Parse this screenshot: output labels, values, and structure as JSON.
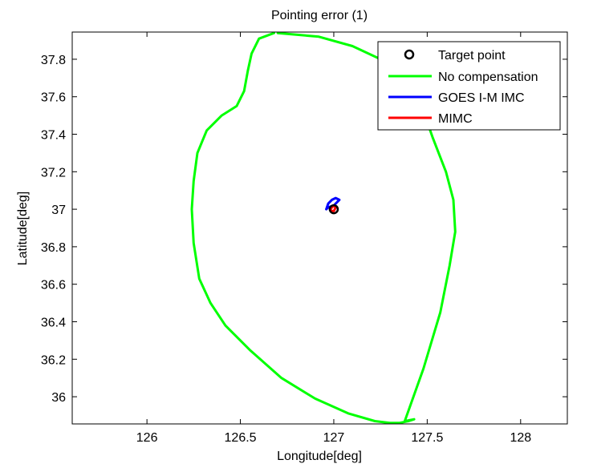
{
  "chart_data": {
    "type": "line",
    "title": "Pointing error (1)",
    "xlabel": "Longitude[deg]",
    "ylabel": "Latitude[deg]",
    "xlim": [
      125.6,
      128.25
    ],
    "ylim": [
      35.855,
      37.945
    ],
    "xticks": [
      126,
      126.5,
      127,
      127.5,
      128
    ],
    "xtick_labels": [
      "126",
      "126.5",
      "127",
      "127.5",
      "128"
    ],
    "yticks": [
      36,
      36.2,
      36.4,
      36.6,
      36.8,
      37,
      37.2,
      37.4,
      37.6,
      37.8
    ],
    "ytick_labels": [
      "36",
      "36.2",
      "36.4",
      "36.6",
      "36.8",
      "37",
      "37.2",
      "37.4",
      "37.6",
      "37.8"
    ],
    "grid": false,
    "legend_position": "top-right",
    "series": [
      {
        "name": "Target point",
        "style": "marker",
        "color": "#000000",
        "x": [
          127.0
        ],
        "y": [
          37.0
        ]
      },
      {
        "name": "No compensation",
        "style": "line",
        "color": "#00ff00",
        "x": [
          126.68,
          126.6,
          126.56,
          126.54,
          126.52,
          126.48,
          126.4,
          126.32,
          126.27,
          126.25,
          126.24,
          126.25,
          126.28,
          126.34,
          126.42,
          126.55,
          126.72,
          126.9,
          127.08,
          127.22,
          127.3,
          127.35,
          127.4,
          127.43,
          127.38,
          127.48,
          127.57,
          127.62,
          127.65,
          127.64,
          127.6,
          127.53,
          127.47,
          127.43,
          127.35,
          127.25,
          127.1,
          126.92,
          126.7
        ],
        "y": [
          37.94,
          37.91,
          37.83,
          37.74,
          37.63,
          37.55,
          37.5,
          37.42,
          37.3,
          37.15,
          37.0,
          36.82,
          36.63,
          36.5,
          36.38,
          36.25,
          36.1,
          35.99,
          35.91,
          35.87,
          35.86,
          35.86,
          35.87,
          35.88,
          35.87,
          36.15,
          36.45,
          36.7,
          36.88,
          37.05,
          37.2,
          37.38,
          37.55,
          37.62,
          37.72,
          37.8,
          37.87,
          37.92,
          37.94
        ]
      },
      {
        "name": "GOES I-M IMC",
        "style": "line",
        "color": "#0000ff",
        "x": [
          126.96,
          126.97,
          126.99,
          127.01,
          127.03,
          127.0,
          126.97,
          126.96
        ],
        "y": [
          37.0,
          37.03,
          37.05,
          37.06,
          37.05,
          37.02,
          37.01,
          37.0
        ]
      },
      {
        "name": "MIMC",
        "style": "line",
        "color": "#ff0000",
        "x": [
          126.98,
          126.99,
          127.0,
          127.01,
          127.0,
          126.99,
          126.98
        ],
        "y": [
          37.0,
          37.01,
          37.02,
          37.01,
          36.99,
          36.99,
          37.0
        ]
      }
    ]
  }
}
